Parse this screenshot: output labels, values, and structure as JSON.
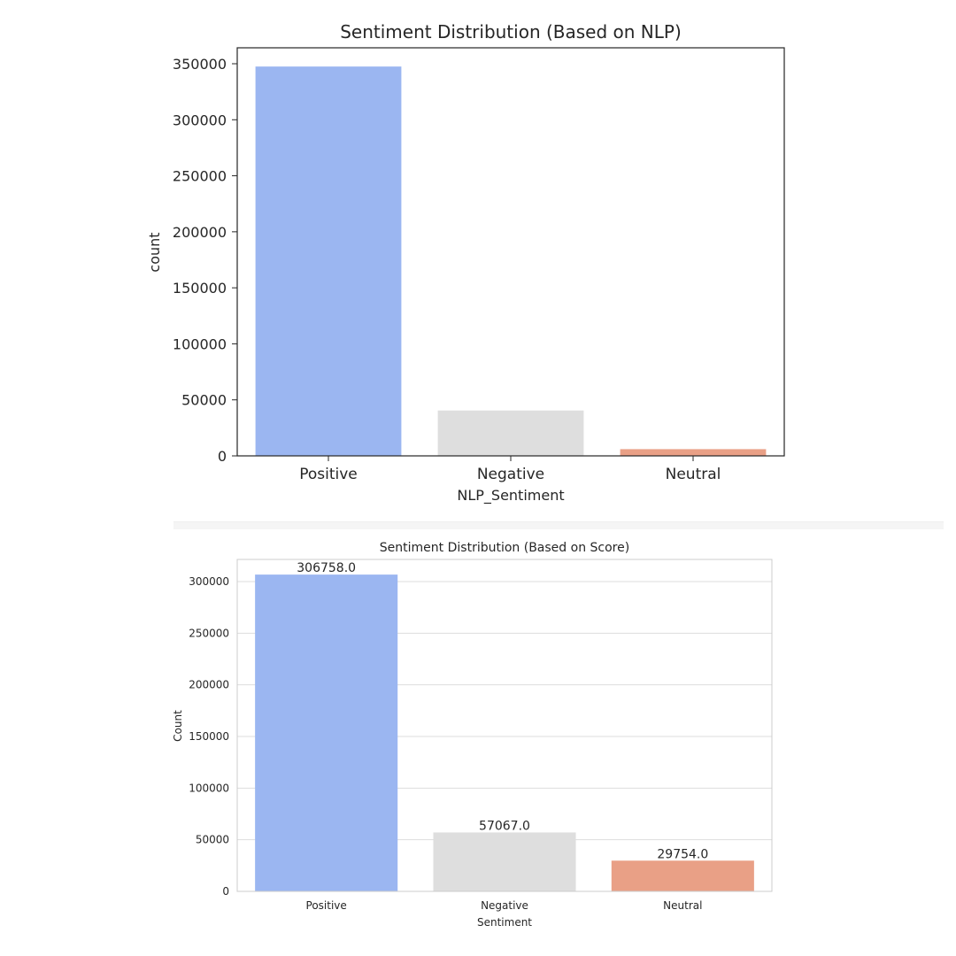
{
  "chart_data": [
    {
      "type": "bar",
      "title": "Sentiment Distribution (Based on NLP)",
      "xlabel": "NLP_Sentiment",
      "ylabel": "count",
      "categories": [
        "Positive",
        "Negative",
        "Neutral"
      ],
      "values": [
        347500,
        40500,
        6000
      ],
      "colors": [
        "#9bb6f1",
        "#dedede",
        "#e9a086"
      ],
      "ylim": [
        0,
        350000
      ],
      "yticks": [
        0,
        50000,
        100000,
        150000,
        200000,
        250000,
        300000,
        350000
      ],
      "grid": false,
      "data_labels": false
    },
    {
      "type": "bar",
      "title": "Sentiment Distribution (Based on Score)",
      "xlabel": "Sentiment",
      "ylabel": "Count",
      "categories": [
        "Positive",
        "Negative",
        "Neutral"
      ],
      "values": [
        306758,
        57067,
        29754
      ],
      "value_labels": [
        "306758.0",
        "57067.0",
        "29754.0"
      ],
      "colors": [
        "#9bb6f1",
        "#dedede",
        "#e9a086"
      ],
      "ylim": [
        0,
        300000
      ],
      "yticks": [
        0,
        50000,
        100000,
        150000,
        200000,
        250000,
        300000
      ],
      "grid": true,
      "data_labels": true
    }
  ]
}
